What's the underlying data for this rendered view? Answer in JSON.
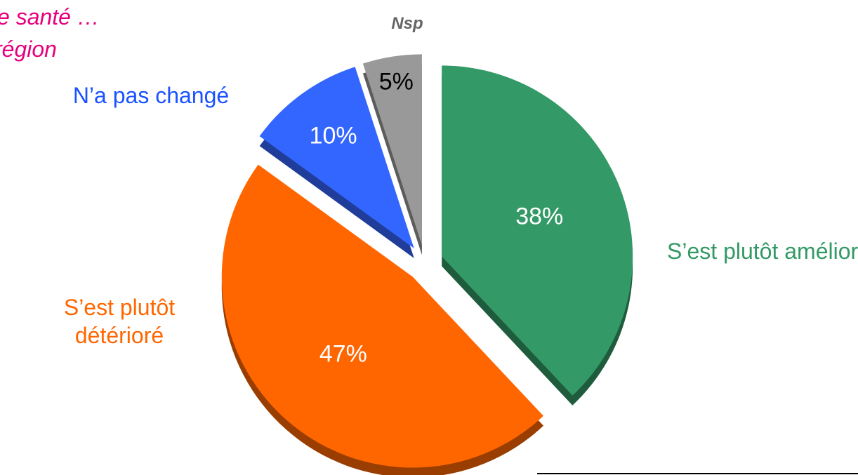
{
  "chart_data": {
    "type": "pie",
    "annotations": [
      "e santé …",
      "région"
    ],
    "categories": [
      "S’est plutôt amélioré",
      "S’est plutôt détérioré",
      "N’a pas changé",
      "Nsp"
    ],
    "values": [
      38,
      47,
      10,
      5
    ],
    "value_labels": [
      "38%",
      "47%",
      "10%",
      "5%"
    ],
    "colors": [
      "#339966",
      "#ff6600",
      "#3366ff",
      "#999999"
    ],
    "label_colors": [
      "#339966",
      "#ff6600",
      "#1a53ff",
      "#666666"
    ]
  }
}
